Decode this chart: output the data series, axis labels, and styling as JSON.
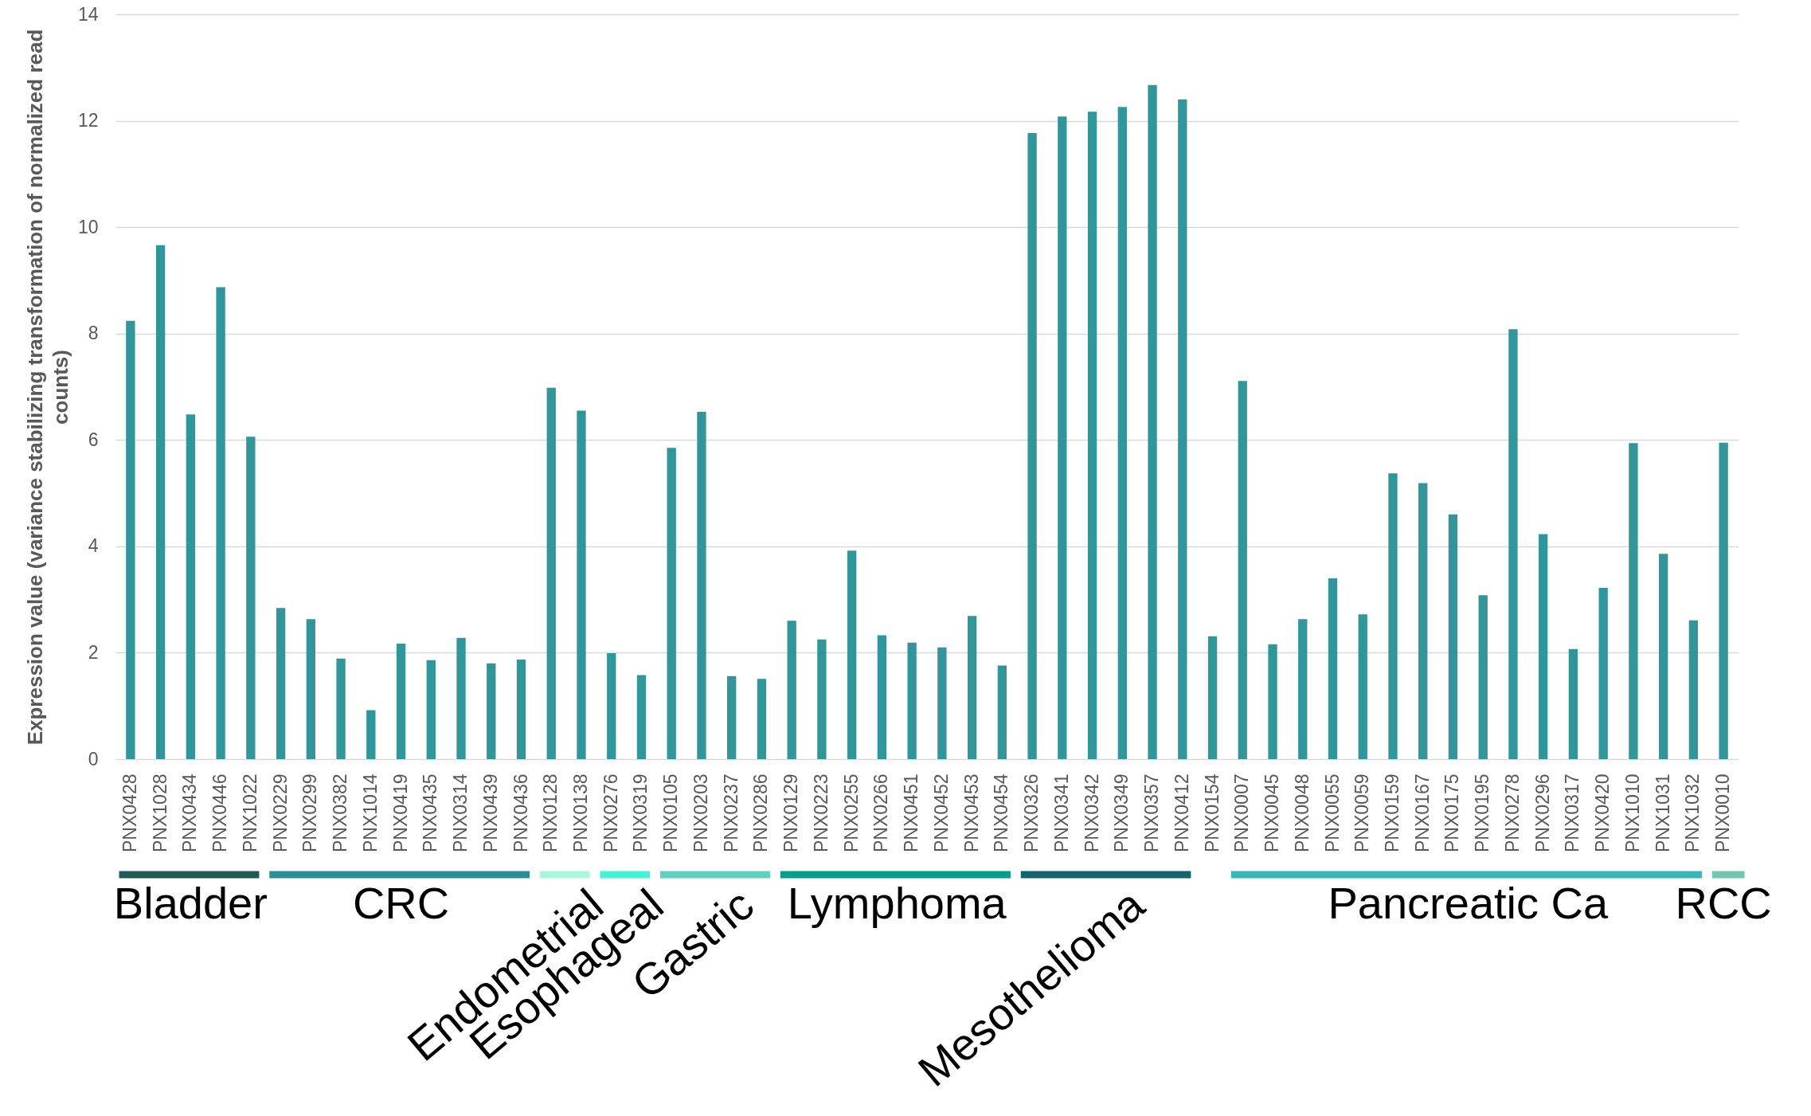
{
  "chart_data": {
    "type": "bar",
    "ylabel": "Expression value (variance stabilizing transformation of normalized read counts)",
    "categories": [
      "PNX0428",
      "PNX1028",
      "PNX0434",
      "PNX0446",
      "PNX1022",
      "PNX0229",
      "PNX0299",
      "PNX0382",
      "PNX1014",
      "PNX0419",
      "PNX0435",
      "PNX0314",
      "PNX0439",
      "PNX0436",
      "PNX0128",
      "PNX0138",
      "PNX0276",
      "PNX0319",
      "PNX0105",
      "PNX0203",
      "PNX0237",
      "PNX0286",
      "PNX0129",
      "PNX0223",
      "PNX0255",
      "PNX0266",
      "PNX0451",
      "PNX0452",
      "PNX0453",
      "PNX0454",
      "PNX0326",
      "PNX0341",
      "PNX0342",
      "PNX0349",
      "PNX0357",
      "PNX0412",
      "PNX0154",
      "PNX0007",
      "PNX0045",
      "PNX0048",
      "PNX0055",
      "PNX0059",
      "PNX0159",
      "PNX0167",
      "PNX0175",
      "PNX0195",
      "PNX0278",
      "PNX0296",
      "PNX0317",
      "PNX0420",
      "PNX1010",
      "PNX1031",
      "PNX1032",
      "PNX0010"
    ],
    "series": [
      {
        "name": "Bladder",
        "color": "#1e5b54",
        "values": [
          8.24,
          9.66,
          6.48,
          8.87,
          6.06,
          null,
          null,
          null,
          null,
          null,
          null,
          null,
          null,
          null,
          null,
          null,
          null,
          null,
          null,
          null,
          null,
          null,
          null,
          null,
          null,
          null,
          null,
          null,
          null,
          null,
          null,
          null,
          null,
          null,
          null,
          null,
          null,
          null,
          null,
          null,
          null,
          null,
          null,
          null,
          null,
          null,
          null,
          null,
          null,
          null,
          null,
          null,
          null,
          null
        ],
        "colors": [
          "#31969a",
          "#31969a",
          "#31969a",
          "#31969a",
          "#31969a",
          null,
          null,
          null,
          null,
          null,
          null,
          null,
          null,
          null,
          null,
          null,
          null,
          null,
          null,
          null,
          null,
          null,
          null,
          null,
          null,
          null,
          null,
          null,
          null,
          null,
          null,
          null,
          null,
          null,
          null,
          null,
          null,
          null,
          null,
          null,
          null,
          null,
          null,
          null,
          null,
          null,
          null,
          null,
          null,
          null,
          null,
          null,
          null,
          null
        ]
      },
      {
        "name": "CRC",
        "color": "#2b8f99",
        "values": [
          null,
          null,
          null,
          null,
          null,
          2.84,
          2.63,
          1.89,
          0.92,
          2.17,
          1.86,
          2.28,
          1.8,
          1.87,
          null,
          null,
          null,
          null,
          null,
          null,
          null,
          null,
          null,
          null,
          null,
          null,
          null,
          null,
          null,
          null,
          null,
          null,
          null,
          null,
          null,
          null,
          null,
          null,
          null,
          null,
          null,
          null,
          null,
          null,
          null,
          null,
          null,
          null,
          null,
          null,
          null,
          null,
          null,
          null
        ],
        "colors": [
          null,
          null,
          null,
          null,
          null,
          "#31969a",
          "#31969a",
          "#31969a",
          "#31969a",
          "#31969a",
          "#31969a",
          "#31969a",
          "#31969a",
          "#31969a",
          null,
          null,
          null,
          null,
          null,
          null,
          null,
          null,
          null,
          null,
          null,
          null,
          null,
          null,
          null,
          null,
          null,
          null,
          null,
          null,
          null,
          null,
          null,
          null,
          null,
          null,
          null,
          null,
          null,
          null,
          null,
          null,
          null,
          null,
          null,
          null,
          null,
          null,
          null,
          null
        ]
      },
      {
        "name": "Endometrial",
        "color": "#a8f7da",
        "values": [
          null,
          null,
          null,
          null,
          null,
          null,
          null,
          null,
          null,
          null,
          null,
          null,
          null,
          null,
          6.98,
          6.55,
          null,
          null,
          null,
          null,
          null,
          null,
          null,
          null,
          null,
          null,
          null,
          null,
          null,
          null,
          null,
          null,
          null,
          null,
          null,
          null,
          null,
          null,
          null,
          null,
          null,
          null,
          null,
          null,
          null,
          null,
          null,
          null,
          null,
          null,
          null,
          null,
          null,
          null
        ],
        "colors": [
          null,
          null,
          null,
          null,
          null,
          null,
          null,
          null,
          null,
          null,
          null,
          null,
          null,
          null,
          "#31969a",
          "#31969a",
          null,
          null,
          null,
          null,
          null,
          null,
          null,
          null,
          null,
          null,
          null,
          null,
          null,
          null,
          null,
          null,
          null,
          null,
          null,
          null,
          null,
          null,
          null,
          null,
          null,
          null,
          null,
          null,
          null,
          null,
          null,
          null,
          null,
          null,
          null,
          null,
          null,
          null
        ]
      },
      {
        "name": "Esophageal",
        "color": "#42f3d8",
        "values": [
          null,
          null,
          null,
          null,
          null,
          null,
          null,
          null,
          null,
          null,
          null,
          null,
          null,
          null,
          null,
          null,
          1.99,
          1.58,
          null,
          null,
          null,
          null,
          null,
          null,
          null,
          null,
          null,
          null,
          null,
          null,
          null,
          null,
          null,
          null,
          null,
          null,
          null,
          null,
          null,
          null,
          null,
          null,
          null,
          null,
          null,
          null,
          null,
          null,
          null,
          null,
          null,
          null,
          null,
          null
        ],
        "colors": [
          null,
          null,
          null,
          null,
          null,
          null,
          null,
          null,
          null,
          null,
          null,
          null,
          null,
          null,
          null,
          null,
          "#31969a",
          "#31969a",
          null,
          null,
          null,
          null,
          null,
          null,
          null,
          null,
          null,
          null,
          null,
          null,
          null,
          null,
          null,
          null,
          null,
          null,
          null,
          null,
          null,
          null,
          null,
          null,
          null,
          null,
          null,
          null,
          null,
          null,
          null,
          null,
          null,
          null,
          null,
          null
        ]
      },
      {
        "name": "Gastric",
        "color": "#5fd2be",
        "values": [
          null,
          null,
          null,
          null,
          null,
          null,
          null,
          null,
          null,
          null,
          null,
          null,
          null,
          null,
          null,
          null,
          null,
          null,
          5.85,
          6.53,
          1.56,
          1.51,
          null,
          null,
          null,
          null,
          null,
          null,
          null,
          null,
          null,
          null,
          null,
          null,
          null,
          null,
          null,
          null,
          null,
          null,
          null,
          null,
          null,
          null,
          null,
          null,
          null,
          null,
          null,
          null,
          null,
          null,
          null,
          null
        ],
        "colors": [
          null,
          null,
          null,
          null,
          null,
          null,
          null,
          null,
          null,
          null,
          null,
          null,
          null,
          null,
          null,
          null,
          null,
          null,
          "#31969a",
          "#31969a",
          "#31969a",
          "#31969a",
          null,
          null,
          null,
          null,
          null,
          null,
          null,
          null,
          null,
          null,
          null,
          null,
          null,
          null,
          null,
          null,
          null,
          null,
          null,
          null,
          null,
          null,
          null,
          null,
          null,
          null,
          null,
          null,
          null,
          null,
          null,
          null
        ]
      },
      {
        "name": "Lymphoma",
        "color": "#00a08c",
        "values": [
          null,
          null,
          null,
          null,
          null,
          null,
          null,
          null,
          null,
          null,
          null,
          null,
          null,
          null,
          null,
          null,
          null,
          null,
          null,
          null,
          null,
          null,
          2.6,
          2.25,
          3.92,
          2.33,
          2.19,
          2.1,
          2.69,
          1.76,
          null,
          null,
          null,
          null,
          null,
          null,
          null,
          null,
          null,
          null,
          null,
          null,
          null,
          null,
          null,
          null,
          null,
          null,
          null,
          null,
          null,
          null,
          null,
          null
        ],
        "colors": [
          null,
          null,
          null,
          null,
          null,
          null,
          null,
          null,
          null,
          null,
          null,
          null,
          null,
          null,
          null,
          null,
          null,
          null,
          null,
          null,
          null,
          null,
          "#31969a",
          "#31969a",
          "#31969a",
          "#31969a",
          "#31969a",
          "#31969a",
          "#31969a",
          "#31969a",
          null,
          null,
          null,
          null,
          null,
          null,
          null,
          null,
          null,
          null,
          null,
          null,
          null,
          null,
          null,
          null,
          null,
          null,
          null,
          null,
          null,
          null,
          null,
          null
        ]
      },
      {
        "name": "Mesothelioma",
        "color": "#12646f",
        "values": [
          null,
          null,
          null,
          null,
          null,
          null,
          null,
          null,
          null,
          null,
          null,
          null,
          null,
          null,
          null,
          null,
          null,
          null,
          null,
          null,
          null,
          null,
          null,
          null,
          null,
          null,
          null,
          null,
          null,
          null,
          11.77,
          12.08,
          12.17,
          12.26,
          12.67,
          12.4,
          null,
          null,
          null,
          null,
          null,
          null,
          null,
          null,
          null,
          null,
          null,
          null,
          null,
          null,
          null,
          null,
          null,
          null
        ],
        "colors": [
          null,
          null,
          null,
          null,
          null,
          null,
          null,
          null,
          null,
          null,
          null,
          null,
          null,
          null,
          null,
          null,
          null,
          null,
          null,
          null,
          null,
          null,
          null,
          null,
          null,
          null,
          null,
          null,
          null,
          null,
          "#31969a",
          "#31969a",
          "#31969a",
          "#31969a",
          "#31969a",
          "#31969a",
          null,
          null,
          null,
          null,
          null,
          null,
          null,
          null,
          null,
          null,
          null,
          null,
          null,
          null,
          null,
          null,
          null,
          null
        ]
      },
      {
        "color": "#31969a",
        "values": [
          null,
          null,
          null,
          null,
          null,
          null,
          null,
          null,
          null,
          null,
          null,
          null,
          null,
          null,
          null,
          null,
          null,
          null,
          null,
          null,
          null,
          null,
          null,
          null,
          null,
          null,
          null,
          null,
          null,
          null,
          null,
          null,
          null,
          null,
          null,
          null,
          2.31,
          null,
          null,
          null,
          null,
          null,
          null,
          null,
          null,
          null,
          null,
          null,
          null,
          null,
          null,
          null,
          null,
          null
        ]
      },
      {
        "name": "Pancreatic Ca",
        "color": "#3ab6b6",
        "values": [
          null,
          null,
          null,
          null,
          null,
          null,
          null,
          null,
          null,
          null,
          null,
          null,
          null,
          null,
          null,
          null,
          null,
          null,
          null,
          null,
          null,
          null,
          null,
          null,
          null,
          null,
          null,
          null,
          null,
          null,
          null,
          null,
          null,
          null,
          null,
          null,
          null,
          7.11,
          2.16,
          2.63,
          3.4,
          2.72,
          5.37,
          5.19,
          4.6,
          3.08,
          8.08,
          4.23,
          2.07,
          3.22,
          5.94,
          3.86,
          2.61,
          null
        ],
        "colors": [
          null,
          null,
          null,
          null,
          null,
          null,
          null,
          null,
          null,
          null,
          null,
          null,
          null,
          null,
          null,
          null,
          null,
          null,
          null,
          null,
          null,
          null,
          null,
          null,
          null,
          null,
          null,
          null,
          null,
          null,
          null,
          null,
          null,
          null,
          null,
          null,
          null,
          "#31969a",
          "#31969a",
          "#31969a",
          "#31969a",
          "#31969a",
          "#31969a",
          "#31969a",
          "#31969a",
          "#31969a",
          "#31969a",
          "#31969a",
          "#31969a",
          "#31969a",
          "#31969a",
          "#31969a",
          "#31969a",
          null
        ]
      },
      {
        "name": "RCC",
        "color": "#6ec7ae",
        "values": [
          null,
          null,
          null,
          null,
          null,
          null,
          null,
          null,
          null,
          null,
          null,
          null,
          null,
          null,
          null,
          null,
          null,
          null,
          null,
          null,
          null,
          null,
          null,
          null,
          null,
          null,
          null,
          null,
          null,
          null,
          null,
          null,
          null,
          null,
          null,
          null,
          null,
          null,
          null,
          null,
          null,
          null,
          null,
          null,
          null,
          null,
          null,
          null,
          null,
          null,
          null,
          null,
          null,
          5.95
        ],
        "colors": [
          null,
          null,
          null,
          null,
          null,
          null,
          null,
          null,
          null,
          null,
          null,
          null,
          null,
          null,
          null,
          null,
          null,
          null,
          null,
          null,
          null,
          null,
          null,
          null,
          null,
          null,
          null,
          null,
          null,
          null,
          null,
          null,
          null,
          null,
          null,
          null,
          null,
          null,
          null,
          null,
          null,
          null,
          null,
          null,
          null,
          null,
          null,
          null,
          null,
          null,
          null,
          null,
          null,
          "#31969a"
        ]
      }
    ],
    "ylim": [
      0,
      14
    ],
    "yticks": [
      0,
      2,
      4,
      6,
      8,
      10,
      12,
      14
    ],
    "grid": "y"
  }
}
